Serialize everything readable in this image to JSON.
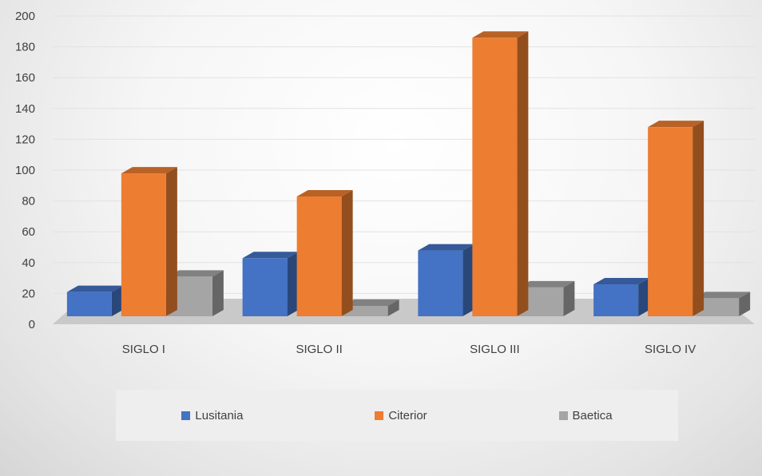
{
  "chart_data": {
    "type": "bar",
    "categories": [
      "SIGLO I",
      "SIGLO II",
      "SIGLO III",
      "SIGLO IV"
    ],
    "series": [
      {
        "name": "Lusitania",
        "color": "#4472c4",
        "values": [
          24,
          46,
          51,
          29
        ]
      },
      {
        "name": "Citerior",
        "color": "#ed7d31",
        "values": [
          101,
          86,
          189,
          131
        ]
      },
      {
        "name": "Baetica",
        "color": "#a5a5a5",
        "values": [
          34,
          15,
          27,
          20
        ]
      }
    ],
    "yticks": [
      "0",
      "20",
      "40",
      "60",
      "80",
      "100",
      "120",
      "140",
      "160",
      "180",
      "200"
    ],
    "ylim": [
      0,
      200
    ],
    "title": "",
    "xlabel": "",
    "ylabel": "",
    "grid": true,
    "legend_position": "bottom",
    "style": "3d-column"
  }
}
